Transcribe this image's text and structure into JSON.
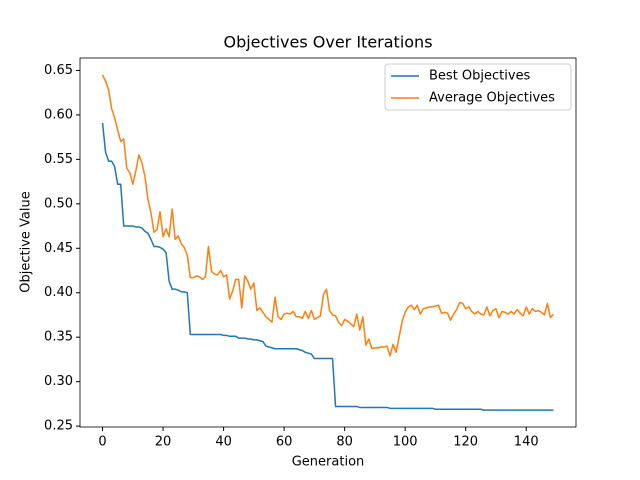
{
  "chart_data": {
    "type": "line",
    "title": "Objectives Over Iterations",
    "xlabel": "Generation",
    "ylabel": "Objective Value",
    "x": [
      0,
      1,
      2,
      3,
      4,
      5,
      6,
      7,
      8,
      9,
      10,
      11,
      12,
      13,
      14,
      15,
      16,
      17,
      18,
      19,
      20,
      21,
      22,
      23,
      24,
      25,
      26,
      27,
      28,
      29,
      30,
      31,
      32,
      33,
      34,
      35,
      36,
      37,
      38,
      39,
      40,
      41,
      42,
      43,
      44,
      45,
      46,
      47,
      48,
      49,
      50,
      51,
      52,
      53,
      54,
      55,
      56,
      57,
      58,
      59,
      60,
      61,
      62,
      63,
      64,
      65,
      66,
      67,
      68,
      69,
      70,
      71,
      72,
      73,
      74,
      75,
      76,
      77,
      78,
      79,
      80,
      81,
      82,
      83,
      84,
      85,
      86,
      87,
      88,
      89,
      90,
      91,
      92,
      93,
      94,
      95,
      96,
      97,
      98,
      99,
      100,
      101,
      102,
      103,
      104,
      105,
      106,
      107,
      108,
      109,
      110,
      111,
      112,
      113,
      114,
      115,
      116,
      117,
      118,
      119,
      120,
      121,
      122,
      123,
      124,
      125,
      126,
      127,
      128,
      129,
      130,
      131,
      132,
      133,
      134,
      135,
      136,
      137,
      138,
      139,
      140,
      141,
      142,
      143,
      144,
      145,
      146,
      147,
      148,
      149
    ],
    "series": [
      {
        "name": "Best Objectives",
        "color": "#1f77b4",
        "values": [
          0.591,
          0.558,
          0.548,
          0.548,
          0.542,
          0.522,
          0.522,
          0.475,
          0.475,
          0.475,
          0.475,
          0.474,
          0.474,
          0.473,
          0.469,
          0.467,
          0.46,
          0.452,
          0.452,
          0.451,
          0.449,
          0.445,
          0.413,
          0.404,
          0.404,
          0.403,
          0.401,
          0.401,
          0.4,
          0.353,
          0.353,
          0.353,
          0.353,
          0.353,
          0.353,
          0.353,
          0.353,
          0.353,
          0.353,
          0.353,
          0.352,
          0.352,
          0.351,
          0.351,
          0.351,
          0.349,
          0.349,
          0.349,
          0.348,
          0.348,
          0.347,
          0.347,
          0.346,
          0.345,
          0.34,
          0.339,
          0.338,
          0.337,
          0.337,
          0.337,
          0.337,
          0.337,
          0.337,
          0.337,
          0.337,
          0.336,
          0.335,
          0.333,
          0.332,
          0.331,
          0.326,
          0.326,
          0.326,
          0.326,
          0.326,
          0.326,
          0.326,
          0.272,
          0.272,
          0.272,
          0.272,
          0.272,
          0.272,
          0.272,
          0.272,
          0.271,
          0.271,
          0.271,
          0.271,
          0.271,
          0.271,
          0.271,
          0.271,
          0.271,
          0.271,
          0.27,
          0.27,
          0.27,
          0.27,
          0.27,
          0.27,
          0.27,
          0.27,
          0.27,
          0.27,
          0.27,
          0.27,
          0.27,
          0.27,
          0.27,
          0.269,
          0.269,
          0.269,
          0.269,
          0.269,
          0.269,
          0.269,
          0.269,
          0.269,
          0.269,
          0.269,
          0.269,
          0.269,
          0.269,
          0.269,
          0.269,
          0.268,
          0.268,
          0.268,
          0.268,
          0.268,
          0.268,
          0.268,
          0.268,
          0.268,
          0.268,
          0.268,
          0.268,
          0.268,
          0.268,
          0.268,
          0.268,
          0.268,
          0.268,
          0.268,
          0.268,
          0.268,
          0.268,
          0.268,
          0.268
        ]
      },
      {
        "name": "Average Objectives",
        "color": "#ff7f0e",
        "values": [
          0.645,
          0.638,
          0.628,
          0.607,
          0.597,
          0.583,
          0.57,
          0.573,
          0.54,
          0.535,
          0.522,
          0.537,
          0.555,
          0.546,
          0.531,
          0.505,
          0.49,
          0.468,
          0.471,
          0.491,
          0.463,
          0.472,
          0.463,
          0.494,
          0.46,
          0.464,
          0.455,
          0.451,
          0.442,
          0.417,
          0.417,
          0.419,
          0.418,
          0.415,
          0.418,
          0.452,
          0.424,
          0.421,
          0.42,
          0.425,
          0.418,
          0.42,
          0.393,
          0.402,
          0.415,
          0.415,
          0.383,
          0.419,
          0.413,
          0.404,
          0.411,
          0.38,
          0.383,
          0.378,
          0.373,
          0.37,
          0.367,
          0.395,
          0.373,
          0.37,
          0.376,
          0.377,
          0.376,
          0.379,
          0.373,
          0.373,
          0.371,
          0.379,
          0.371,
          0.38,
          0.37,
          0.372,
          0.374,
          0.398,
          0.404,
          0.38,
          0.375,
          0.374,
          0.367,
          0.363,
          0.37,
          0.368,
          0.365,
          0.362,
          0.376,
          0.358,
          0.373,
          0.341,
          0.348,
          0.337,
          0.338,
          0.338,
          0.339,
          0.339,
          0.34,
          0.329,
          0.342,
          0.333,
          0.35,
          0.368,
          0.378,
          0.384,
          0.386,
          0.381,
          0.386,
          0.376,
          0.382,
          0.383,
          0.384,
          0.384,
          0.385,
          0.386,
          0.377,
          0.378,
          0.377,
          0.369,
          0.376,
          0.381,
          0.389,
          0.388,
          0.382,
          0.384,
          0.379,
          0.376,
          0.379,
          0.376,
          0.375,
          0.384,
          0.374,
          0.38,
          0.382,
          0.372,
          0.379,
          0.378,
          0.376,
          0.379,
          0.376,
          0.381,
          0.377,
          0.374,
          0.384,
          0.376,
          0.382,
          0.379,
          0.38,
          0.378,
          0.375,
          0.388,
          0.372,
          0.376
        ]
      }
    ],
    "xlim": [
      -7.45,
      156.45
    ],
    "xticks": [
      0,
      20,
      40,
      60,
      80,
      100,
      120,
      140
    ],
    "ylim": [
      0.249,
      0.664
    ],
    "yticks": [
      0.25,
      {
        "value": 0.3,
        "label": "0.30"
      },
      0.35,
      {
        "value": 0.4,
        "label": "0.40"
      },
      0.45,
      {
        "value": 0.5,
        "label": "0.50"
      },
      0.55,
      {
        "value": 0.6,
        "label": "0.60"
      },
      0.65
    ],
    "legend": "upper right"
  }
}
